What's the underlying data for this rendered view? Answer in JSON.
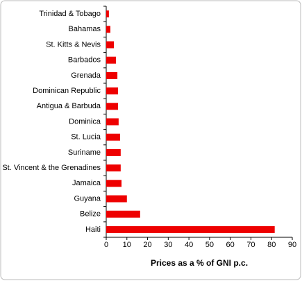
{
  "chart_data": {
    "type": "bar",
    "orientation": "horizontal",
    "x_label": "Prices as a % of GNI p.c.",
    "categories": [
      "Trinidad & Tobago",
      "Bahamas",
      "St. Kitts & Nevis",
      "Barbados",
      "Grenada",
      "Dominican Republic",
      "Antigua & Barbuda",
      "Dominica",
      "St. Lucia",
      "Suriname",
      "St. Vincent & the Grenadines",
      "Jamaica",
      "Guyana",
      "Belize",
      "Haiti"
    ],
    "values": [
      1.3,
      2,
      3.7,
      4.7,
      5.4,
      5.7,
      5.7,
      6,
      6.7,
      7,
      7,
      7.4,
      10,
      16.4,
      81.5
    ],
    "color": "#ee0000",
    "xlim": [
      0,
      90
    ],
    "xticks": [
      0,
      10,
      20,
      30,
      40,
      50,
      60,
      70,
      80,
      90
    ],
    "grid": false
  }
}
